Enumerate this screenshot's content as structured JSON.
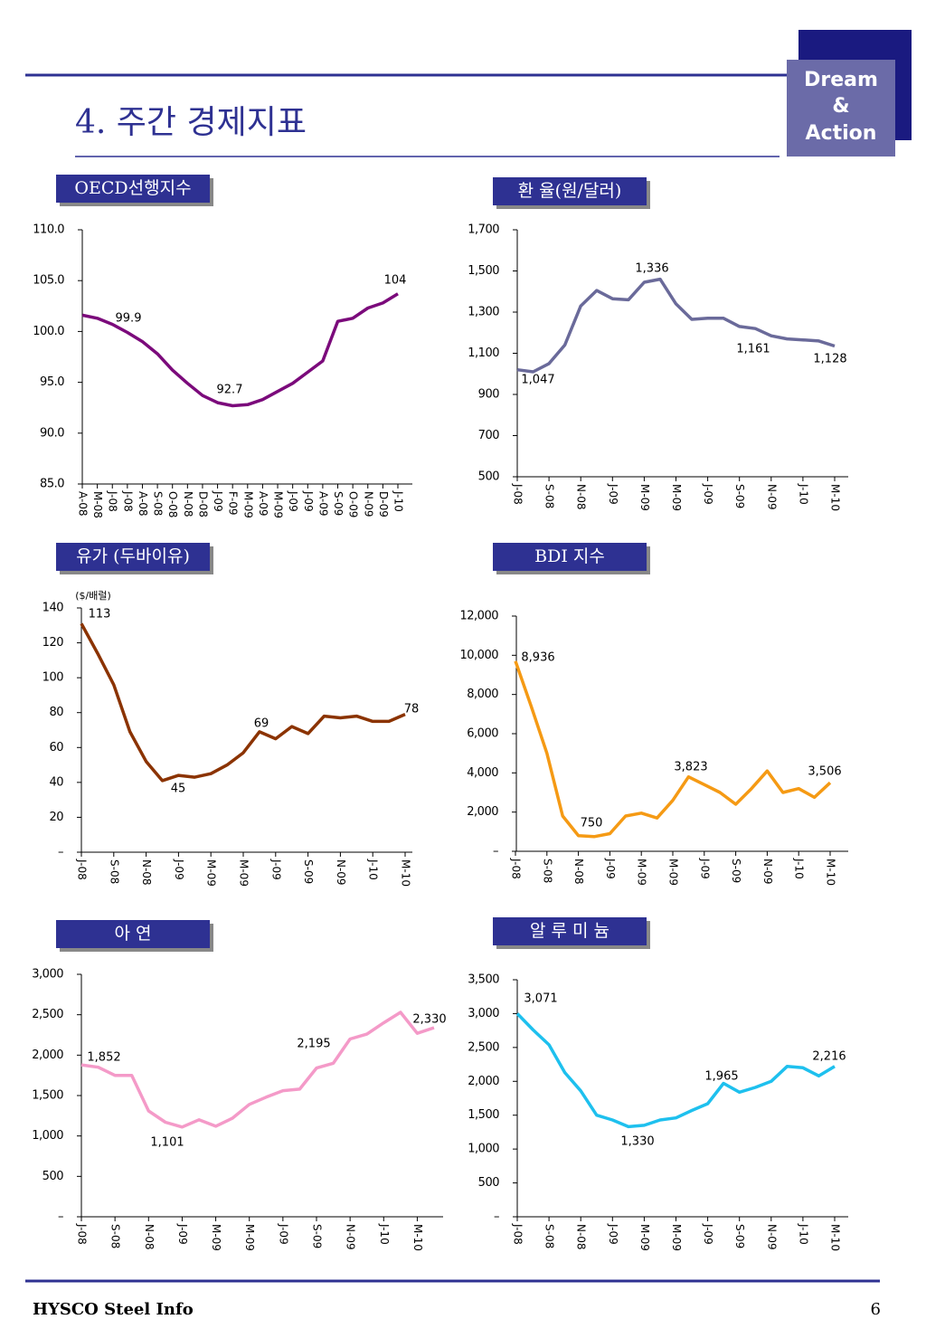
{
  "header": {
    "title": "4. 주간 경제지표",
    "logo": [
      "Dream",
      "&",
      "Action"
    ]
  },
  "footer": {
    "left": "HYSCO Steel Info",
    "page": "6"
  },
  "chart_data": [
    {
      "type": "line",
      "title": "OECD선행지수",
      "color": "#7b0a7b",
      "categories": [
        "A-08",
        "M-08",
        "J-08",
        "J-08",
        "A-08",
        "S-08",
        "O-08",
        "N-08",
        "D-08",
        "J-09",
        "F-09",
        "M-09",
        "A-09",
        "M-09",
        "J-09",
        "J-09",
        "A-09",
        "S-09",
        "O-09",
        "N-09",
        "D-09",
        "J-10"
      ],
      "values": [
        101.6,
        101.3,
        100.7,
        99.9,
        99.0,
        97.8,
        96.2,
        94.9,
        93.7,
        93.0,
        92.7,
        92.8,
        93.3,
        94.1,
        94.9,
        96.0,
        97.1,
        101.0,
        101.3,
        102.3,
        102.8,
        103.7
      ],
      "ylim": [
        85,
        110
      ],
      "yticks": [
        {
          "value": 85,
          "label": "85.0"
        },
        {
          "value": 90,
          "label": "90.0"
        },
        {
          "value": 95,
          "label": "95.0"
        },
        {
          "value": 100,
          "label": "100.0"
        },
        {
          "value": 105,
          "label": "105.0"
        },
        {
          "value": 110,
          "label": "110.0"
        }
      ],
      "annotations": [
        "99.9",
        "92.7",
        "104"
      ]
    },
    {
      "type": "line",
      "title": "환 율(원/달러)",
      "color": "#6a6a9a",
      "categories": [
        "J-08",
        null,
        "S-08",
        null,
        "N-08",
        null,
        "J-09",
        null,
        "M-09",
        null,
        "M-09",
        null,
        "J-09",
        null,
        "S-09",
        null,
        "N-09",
        null,
        "J-10",
        null,
        "M-10"
      ],
      "values": [
        1020,
        1010,
        1050,
        1140,
        1330,
        1405,
        1365,
        1360,
        1445,
        1460,
        1340,
        1265,
        1270,
        1270,
        1230,
        1220,
        1185,
        1170,
        1165,
        1160,
        1135
      ],
      "ylim": [
        500,
        1700
      ],
      "yticks": [
        500,
        700,
        900,
        {
          "value": 1100,
          "label": "1,100"
        },
        {
          "value": 1300,
          "label": "1,300"
        },
        {
          "value": 1500,
          "label": "1,500"
        },
        {
          "value": 1700,
          "label": "1,700"
        }
      ],
      "annotations": [
        "1,336",
        "1,047",
        "1,161",
        "1,128"
      ]
    },
    {
      "type": "line",
      "title": "유가 (두바이유)",
      "color": "#8b3300",
      "categories": [
        "J-08",
        null,
        "S-08",
        null,
        "N-08",
        null,
        "J-09",
        null,
        "M-09",
        null,
        "M-09",
        null,
        "J-09",
        null,
        "S-09",
        null,
        "N-09",
        null,
        "J-10",
        null,
        "M-10"
      ],
      "values": [
        131,
        114,
        96,
        69,
        52,
        41,
        44,
        43,
        45,
        50,
        57,
        69,
        65,
        72,
        68,
        78,
        77,
        78,
        75,
        75,
        79
      ],
      "ylim": [
        0,
        140
      ],
      "yticks": [
        {
          "value": 0,
          "label": "–"
        },
        20,
        40,
        60,
        80,
        100,
        120,
        140
      ],
      "annotations": [
        "($/배럴)",
        "113",
        "69",
        "45",
        "78"
      ]
    },
    {
      "type": "line",
      "title": "BDI 지수",
      "color": "#f59a14",
      "categories": [
        "J-08",
        null,
        "S-08",
        null,
        "N-08",
        null,
        "J-09",
        null,
        "M-09",
        null,
        "M-09",
        null,
        "J-09",
        null,
        "S-09",
        null,
        "N-09",
        null,
        "J-10",
        null,
        "M-10"
      ],
      "values": [
        9700,
        7400,
        5000,
        1800,
        800,
        750,
        900,
        1800,
        1950,
        1700,
        2600,
        3800,
        3400,
        3000,
        2400,
        3200,
        4100,
        3000,
        3200,
        2750,
        3500
      ],
      "ylim": [
        0,
        12000
      ],
      "yticks": [
        {
          "value": 0,
          "label": "–"
        },
        {
          "value": 2000,
          "label": "2,000"
        },
        {
          "value": 4000,
          "label": "4,000"
        },
        {
          "value": 6000,
          "label": "6,000"
        },
        {
          "value": 8000,
          "label": "8,000"
        },
        {
          "value": 10000,
          "label": "10,000"
        },
        {
          "value": 12000,
          "label": "12,000"
        }
      ],
      "annotations": [
        "8,936",
        "750",
        "3,823",
        "3,506"
      ]
    },
    {
      "type": "line",
      "title": "아  연",
      "color": "#f49ac8",
      "categories": [
        "J-08",
        null,
        "S-08",
        null,
        "N-08",
        null,
        "J-09",
        null,
        "M-09",
        null,
        "M-09",
        null,
        "J-09",
        null,
        "S-09",
        null,
        "N-09",
        null,
        "J-10",
        null,
        "M-10",
        null
      ],
      "values": [
        1880,
        1850,
        1750,
        1750,
        1310,
        1170,
        1110,
        1200,
        1120,
        1220,
        1390,
        1480,
        1560,
        1580,
        1840,
        1900,
        2200,
        2260,
        2400,
        2530,
        2270,
        2340
      ],
      "ylim": [
        0,
        3000
      ],
      "yticks": [
        {
          "value": 0,
          "label": "–"
        },
        500,
        {
          "value": 1000,
          "label": "1,000"
        },
        {
          "value": 1500,
          "label": "1,500"
        },
        {
          "value": 2000,
          "label": "2,000"
        },
        {
          "value": 2500,
          "label": "2,500"
        },
        {
          "value": 3000,
          "label": "3,000"
        }
      ],
      "annotations": [
        "1,852",
        "1,101",
        "2,195",
        "2,330"
      ]
    },
    {
      "type": "line",
      "title": "알 루 미 늄",
      "color": "#1ec0ee",
      "categories": [
        "J-08",
        null,
        "S-08",
        null,
        "N-08",
        null,
        "J-09",
        null,
        "M-09",
        null,
        "M-09",
        null,
        "J-09",
        null,
        "S-09",
        null,
        "N-09",
        null,
        "J-10",
        null,
        "M-10"
      ],
      "values": [
        3000,
        2760,
        2540,
        2130,
        1860,
        1500,
        1430,
        1330,
        1350,
        1430,
        1460,
        1570,
        1670,
        1970,
        1840,
        1910,
        2000,
        2220,
        2200,
        2080,
        2220
      ],
      "ylim": [
        0,
        3500
      ],
      "yticks": [
        {
          "value": 0,
          "label": "–"
        },
        500,
        {
          "value": 1000,
          "label": "1,000"
        },
        {
          "value": 1500,
          "label": "1,500"
        },
        {
          "value": 2000,
          "label": "2,000"
        },
        {
          "value": 2500,
          "label": "2,500"
        },
        {
          "value": 3000,
          "label": "3,000"
        },
        {
          "value": 3500,
          "label": "3,500"
        }
      ],
      "annotations": [
        "3,071",
        "1,965",
        "1,330",
        "2,216"
      ]
    }
  ]
}
